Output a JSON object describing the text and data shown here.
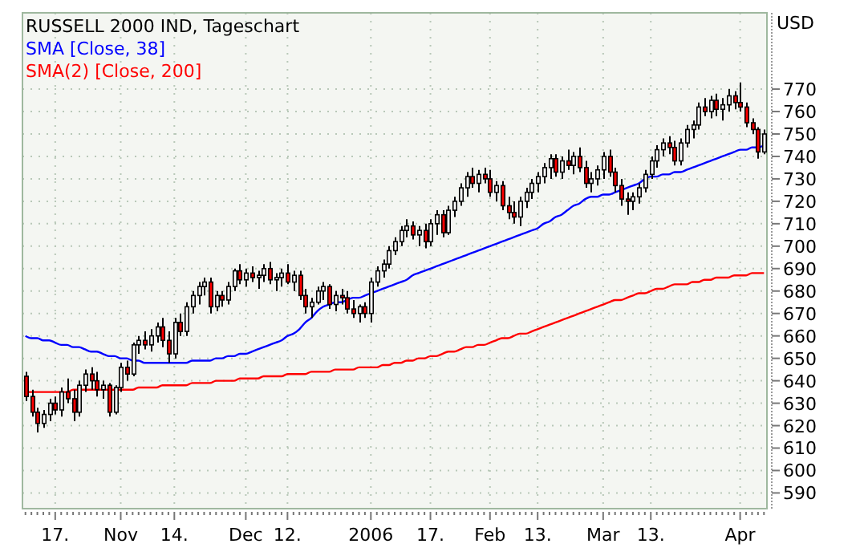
{
  "chart_data": {
    "type": "candlestick",
    "title": "RUSSELL 2000 IND, Tageschart",
    "ylabel": "USD",
    "legend": "top left",
    "grid": true,
    "categories": [
      null,
      null,
      null,
      null,
      null,
      "17.",
      null,
      null,
      null,
      null,
      null,
      null,
      null,
      null,
      null,
      null,
      "Nov",
      null,
      null,
      null,
      null,
      null,
      null,
      null,
      null,
      "14.",
      null,
      null,
      null,
      null,
      null,
      null,
      null,
      null,
      null,
      null,
      null,
      "Dec",
      null,
      null,
      null,
      null,
      null,
      null,
      "12.",
      null,
      null,
      null,
      null,
      null,
      null,
      null,
      null,
      null,
      null,
      null,
      null,
      null,
      "2006",
      null,
      null,
      null,
      null,
      null,
      null,
      null,
      null,
      null,
      "17.",
      null,
      null,
      null,
      null,
      null,
      null,
      null,
      null,
      null,
      "Feb",
      null,
      null,
      null,
      null,
      null,
      null,
      null,
      "13.",
      null,
      null,
      null,
      null,
      null,
      null,
      null,
      null,
      null,
      null,
      "Mar",
      null,
      null,
      null,
      null,
      null,
      null,
      null,
      "13.",
      null,
      null,
      null,
      null,
      null,
      null,
      null,
      null,
      null,
      null,
      null,
      null,
      null,
      null,
      "Apr",
      null,
      null,
      null,
      null
    ],
    "ylim": [
      583,
      804
    ],
    "yticks": [
      590,
      600,
      610,
      620,
      630,
      640,
      650,
      660,
      670,
      680,
      690,
      700,
      710,
      720,
      730,
      740,
      750,
      760,
      770
    ],
    "ohlc": [
      [
        642,
        644,
        631,
        633
      ],
      [
        633,
        636,
        624,
        626
      ],
      [
        626,
        628,
        617,
        621
      ],
      [
        621,
        627,
        619,
        625
      ],
      [
        625,
        632,
        622,
        630
      ],
      [
        630,
        633,
        625,
        627
      ],
      [
        627,
        637,
        624,
        635
      ],
      [
        635,
        641,
        630,
        632
      ],
      [
        632,
        636,
        622,
        626
      ],
      [
        626,
        640,
        624,
        638
      ],
      [
        638,
        645,
        635,
        643
      ],
      [
        643,
        646,
        636,
        640
      ],
      [
        640,
        644,
        633,
        636
      ],
      [
        636,
        640,
        632,
        638
      ],
      [
        638,
        639,
        624,
        626
      ],
      [
        626,
        638,
        625,
        637
      ],
      [
        637,
        648,
        635,
        646
      ],
      [
        646,
        649,
        640,
        643
      ],
      [
        643,
        657,
        642,
        656
      ],
      [
        656,
        660,
        652,
        658
      ],
      [
        658,
        662,
        654,
        656
      ],
      [
        656,
        663,
        653,
        660
      ],
      [
        660,
        666,
        657,
        664
      ],
      [
        664,
        668,
        655,
        658
      ],
      [
        658,
        662,
        648,
        652
      ],
      [
        652,
        668,
        650,
        666
      ],
      [
        666,
        670,
        660,
        662
      ],
      [
        662,
        675,
        660,
        673
      ],
      [
        673,
        680,
        670,
        678
      ],
      [
        678,
        684,
        674,
        682
      ],
      [
        682,
        686,
        678,
        684
      ],
      [
        684,
        686,
        670,
        673
      ],
      [
        673,
        680,
        671,
        678
      ],
      [
        678,
        680,
        673,
        676
      ],
      [
        676,
        684,
        674,
        682
      ],
      [
        682,
        690,
        680,
        689
      ],
      [
        689,
        692,
        683,
        685
      ],
      [
        685,
        690,
        682,
        688
      ],
      [
        688,
        691,
        684,
        686
      ],
      [
        686,
        689,
        681,
        687
      ],
      [
        687,
        692,
        684,
        690
      ],
      [
        690,
        693,
        683,
        685
      ],
      [
        685,
        688,
        680,
        686
      ],
      [
        686,
        690,
        682,
        688
      ],
      [
        688,
        692,
        683,
        684
      ],
      [
        684,
        689,
        680,
        687
      ],
      [
        687,
        689,
        676,
        678
      ],
      [
        678,
        681,
        670,
        673
      ],
      [
        673,
        677,
        668,
        675
      ],
      [
        675,
        682,
        674,
        680
      ],
      [
        680,
        684,
        676,
        682
      ],
      [
        682,
        683,
        672,
        674
      ],
      [
        674,
        680,
        671,
        678
      ],
      [
        678,
        681,
        674,
        677
      ],
      [
        677,
        680,
        670,
        672
      ],
      [
        672,
        676,
        668,
        670
      ],
      [
        670,
        674,
        666,
        673
      ],
      [
        673,
        675,
        668,
        670
      ],
      [
        670,
        686,
        666,
        684
      ],
      [
        684,
        691,
        682,
        689
      ],
      [
        689,
        694,
        686,
        692
      ],
      [
        692,
        700,
        690,
        698
      ],
      [
        698,
        704,
        696,
        702
      ],
      [
        702,
        709,
        700,
        707
      ],
      [
        707,
        712,
        704,
        709
      ],
      [
        709,
        711,
        703,
        705
      ],
      [
        705,
        709,
        700,
        707
      ],
      [
        707,
        710,
        699,
        702
      ],
      [
        702,
        712,
        700,
        710
      ],
      [
        710,
        716,
        705,
        714
      ],
      [
        714,
        716,
        704,
        706
      ],
      [
        706,
        718,
        705,
        716
      ],
      [
        716,
        722,
        713,
        720
      ],
      [
        720,
        728,
        718,
        726
      ],
      [
        726,
        733,
        722,
        731
      ],
      [
        731,
        735,
        726,
        728
      ],
      [
        728,
        734,
        724,
        732
      ],
      [
        732,
        735,
        728,
        730
      ],
      [
        730,
        734,
        722,
        724
      ],
      [
        724,
        729,
        720,
        727
      ],
      [
        727,
        729,
        716,
        718
      ],
      [
        718,
        722,
        712,
        715
      ],
      [
        715,
        720,
        710,
        713
      ],
      [
        713,
        722,
        709,
        720
      ],
      [
        720,
        726,
        717,
        724
      ],
      [
        724,
        730,
        721,
        728
      ],
      [
        728,
        733,
        724,
        731
      ],
      [
        731,
        737,
        728,
        735
      ],
      [
        735,
        741,
        730,
        739
      ],
      [
        739,
        741,
        731,
        733
      ],
      [
        733,
        740,
        730,
        738
      ],
      [
        738,
        743,
        734,
        736
      ],
      [
        736,
        742,
        732,
        740
      ],
      [
        740,
        744,
        733,
        735
      ],
      [
        735,
        738,
        726,
        728
      ],
      [
        728,
        733,
        724,
        730
      ],
      [
        730,
        736,
        727,
        734
      ],
      [
        734,
        742,
        730,
        740
      ],
      [
        740,
        743,
        731,
        733
      ],
      [
        733,
        735,
        724,
        727
      ],
      [
        727,
        730,
        718,
        721
      ],
      [
        721,
        724,
        714,
        720
      ],
      [
        720,
        724,
        716,
        722
      ],
      [
        722,
        728,
        719,
        726
      ],
      [
        726,
        734,
        724,
        732
      ],
      [
        732,
        740,
        730,
        738
      ],
      [
        738,
        745,
        735,
        743
      ],
      [
        743,
        748,
        740,
        746
      ],
      [
        746,
        749,
        741,
        744
      ],
      [
        744,
        747,
        736,
        738
      ],
      [
        738,
        748,
        736,
        746
      ],
      [
        746,
        754,
        744,
        752
      ],
      [
        752,
        756,
        748,
        754
      ],
      [
        754,
        764,
        752,
        762
      ],
      [
        762,
        766,
        758,
        760
      ],
      [
        760,
        767,
        757,
        765
      ],
      [
        765,
        768,
        758,
        761
      ],
      [
        761,
        766,
        756,
        763
      ],
      [
        763,
        770,
        760,
        767
      ],
      [
        767,
        769,
        761,
        764
      ],
      [
        764,
        773,
        760,
        762
      ],
      [
        762,
        764,
        753,
        755
      ],
      [
        755,
        757,
        750,
        752
      ],
      [
        752,
        753,
        739,
        742
      ],
      [
        742,
        752,
        741,
        750
      ]
    ],
    "series": [
      {
        "type": "line",
        "name": "SMA [Close, 38]",
        "color": "#0000ff",
        "values": [
          660,
          659,
          659,
          658,
          658,
          657,
          656,
          656,
          655,
          655,
          654,
          653,
          653,
          652,
          651,
          651,
          650,
          650,
          649,
          649,
          648,
          648,
          648,
          648,
          648,
          648,
          648,
          648,
          649,
          649,
          649,
          649,
          650,
          650,
          651,
          651,
          652,
          652,
          653,
          654,
          655,
          656,
          657,
          658,
          660,
          661,
          663,
          666,
          668,
          671,
          673,
          674,
          675,
          675,
          676,
          677,
          677,
          678,
          679,
          680,
          681,
          682,
          683,
          684,
          685,
          687,
          688,
          689,
          690,
          691,
          692,
          693,
          694,
          695,
          696,
          697,
          698,
          699,
          700,
          701,
          702,
          703,
          704,
          705,
          706,
          707,
          708,
          710,
          711,
          713,
          714,
          716,
          718,
          719,
          721,
          722,
          722,
          723,
          723,
          724,
          725,
          726,
          727,
          728,
          730,
          731,
          731,
          732,
          732,
          733,
          733,
          734,
          735,
          736,
          737,
          738,
          739,
          740,
          741,
          742,
          743,
          743,
          744,
          744,
          745
        ]
      },
      {
        "type": "line",
        "name": "SMA(2) [Close, 200]",
        "color": "#ff0000",
        "values": [
          635,
          635,
          635,
          635,
          635,
          635,
          635,
          635,
          636,
          636,
          636,
          636,
          636,
          636,
          636,
          636,
          636,
          636,
          636,
          637,
          637,
          637,
          637,
          638,
          638,
          638,
          638,
          638,
          639,
          639,
          639,
          639,
          640,
          640,
          640,
          640,
          641,
          641,
          641,
          641,
          642,
          642,
          642,
          642,
          643,
          643,
          643,
          643,
          644,
          644,
          644,
          644,
          645,
          645,
          645,
          645,
          646,
          646,
          646,
          646,
          647,
          647,
          648,
          648,
          649,
          649,
          650,
          650,
          651,
          651,
          652,
          653,
          653,
          654,
          655,
          655,
          656,
          656,
          657,
          658,
          659,
          659,
          660,
          661,
          661,
          662,
          663,
          664,
          665,
          666,
          667,
          668,
          669,
          670,
          671,
          672,
          673,
          674,
          675,
          676,
          676,
          677,
          678,
          679,
          679,
          680,
          681,
          681,
          682,
          683,
          683,
          683,
          684,
          684,
          685,
          685,
          686,
          686,
          686,
          687,
          687,
          687,
          688,
          688,
          688
        ]
      }
    ]
  }
}
